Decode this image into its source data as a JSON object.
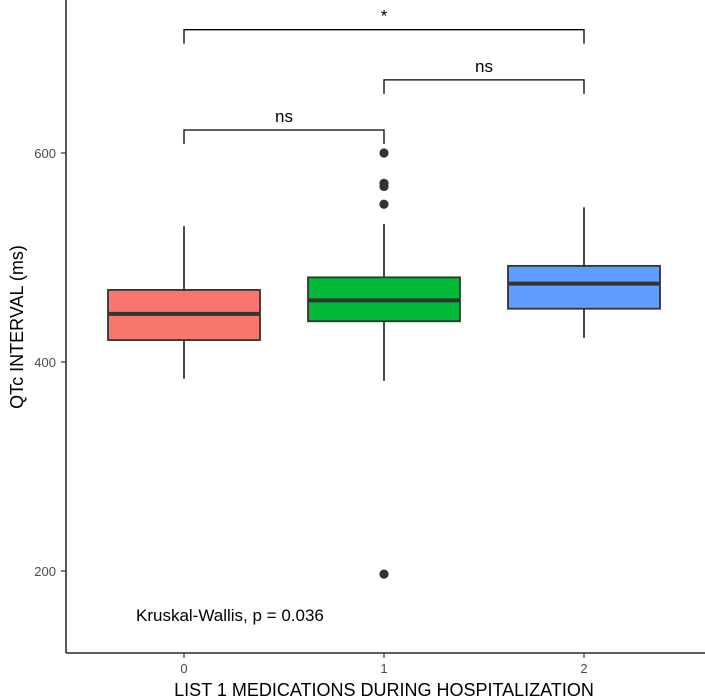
{
  "chart_data": {
    "type": "box",
    "xlabel": "LIST 1 MEDICATIONS DURING HOSPITALIZATION",
    "ylabel": "QTc INTERVAL (ms)",
    "categories": [
      "0",
      "1",
      "2"
    ],
    "yticks": [
      200,
      400,
      600
    ],
    "ylim": [
      165,
      750
    ],
    "grid": false,
    "legend": "none",
    "boxes": [
      {
        "category": "0",
        "q1": 421,
        "median": 446,
        "q3": 469,
        "whisker_low": 384,
        "whisker_high": 530,
        "outliers": [],
        "color": "#F8766D"
      },
      {
        "category": "1",
        "q1": 439,
        "median": 459,
        "q3": 481,
        "whisker_low": 382,
        "whisker_high": 532,
        "outliers": [
          197,
          551,
          568,
          571,
          600
        ],
        "color": "#00BA38"
      },
      {
        "category": "2",
        "q1": 451,
        "median": 475,
        "q3": 492,
        "whisker_low": 423,
        "whisker_high": 548,
        "outliers": [],
        "color": "#619CFF"
      }
    ],
    "comparisons": [
      {
        "from": "0",
        "to": "1",
        "y": 622,
        "label": "ns"
      },
      {
        "from": "1",
        "to": "2",
        "y": 670,
        "label": "ns"
      },
      {
        "from": "0",
        "to": "2",
        "y": 718,
        "label": "*"
      }
    ],
    "annotation": "Kruskal-Wallis, p = 0.036"
  }
}
